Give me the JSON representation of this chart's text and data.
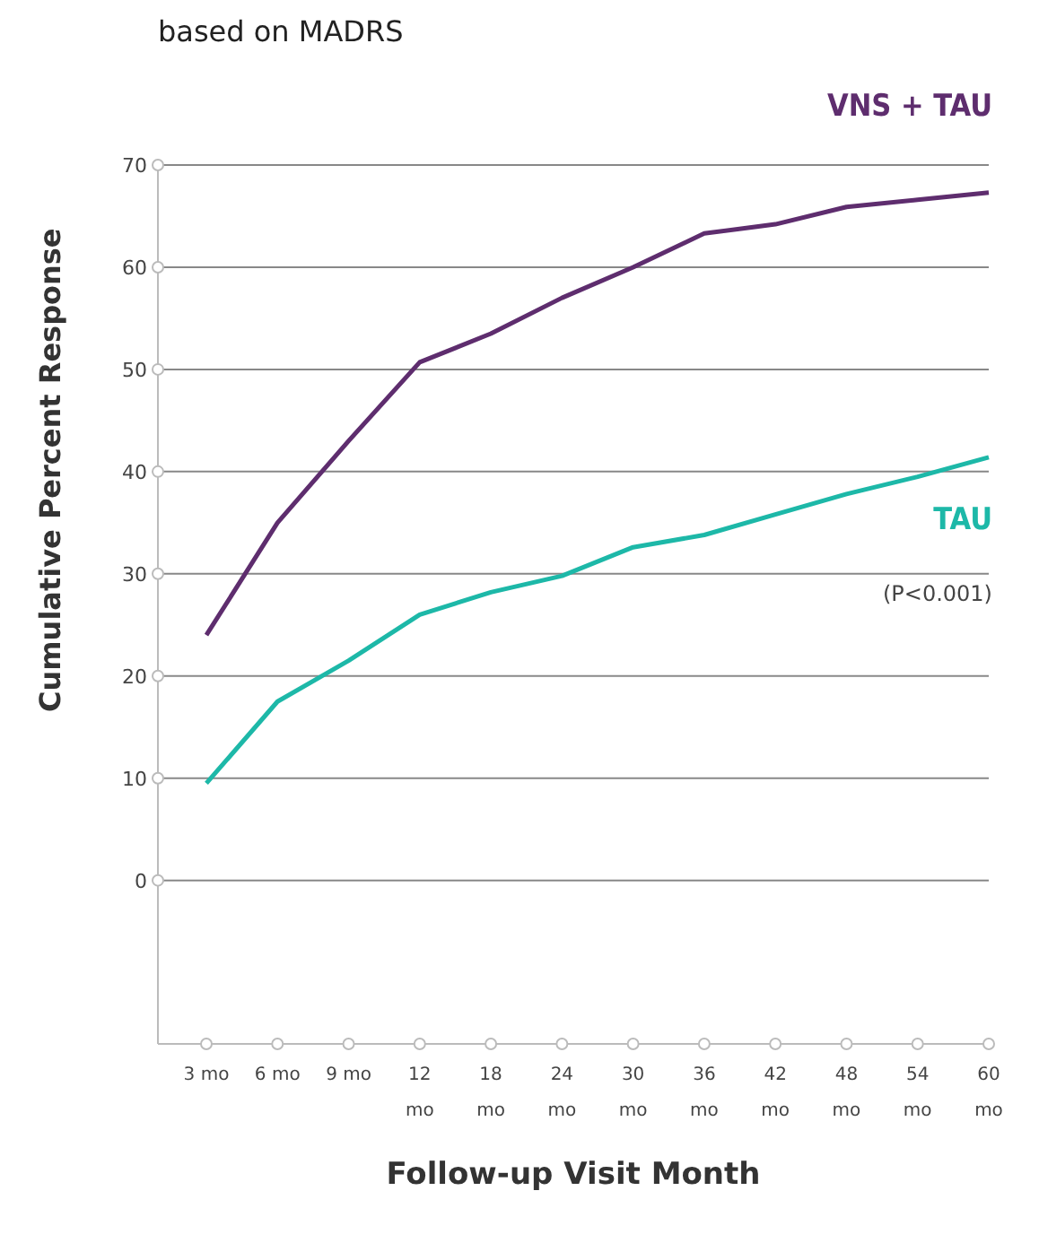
{
  "chart_data": {
    "type": "line",
    "title": "based on MADRS",
    "xlabel": "Follow-up Visit Month",
    "ylabel": "Cumulative Percent Response",
    "categories": [
      "3 mo",
      "6 mo",
      "9 mo",
      "12 mo",
      "18 mo",
      "24 mo",
      "30 mo",
      "36 mo",
      "42 mo",
      "48 mo",
      "54 mo",
      "60 mo"
    ],
    "series": [
      {
        "name": "VNS + TAU",
        "color": "#5e2d6e",
        "values": [
          24,
          35,
          43,
          50.7,
          53.5,
          57,
          60,
          63.3,
          64.2,
          65.9,
          66.6,
          67.3
        ]
      },
      {
        "name": "TAU",
        "color": "#1db8a8",
        "values": [
          9.5,
          17.5,
          21.5,
          26,
          28.2,
          29.8,
          32.6,
          33.8,
          35.8,
          37.8,
          39.5,
          41.4
        ]
      }
    ],
    "ylim": [
      -16,
      70
    ],
    "yticks": [
      0,
      10,
      20,
      30,
      40,
      50,
      60,
      70
    ],
    "grid": "y",
    "legend": false,
    "marker": "none",
    "line_style": "solid",
    "annotations": [
      "(P<0.001)"
    ]
  }
}
